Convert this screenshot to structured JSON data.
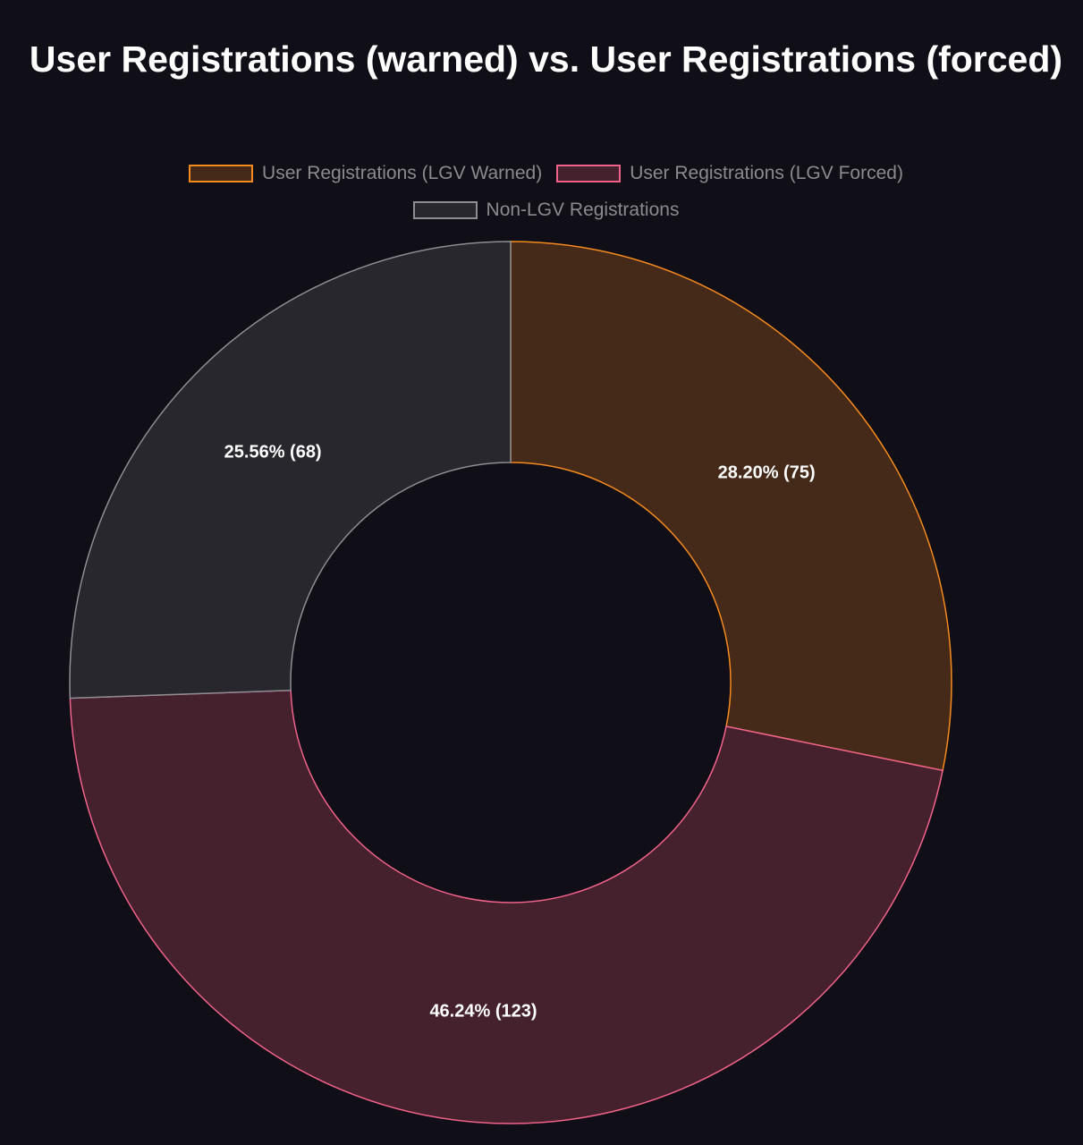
{
  "chart_data": {
    "type": "pie",
    "variant": "doughnut",
    "title": "User Registrations (warned) vs. User Registrations (forced)",
    "legend_position": "top",
    "slices": [
      {
        "name": "User Registrations (LGV Warned)",
        "value": 75,
        "label": "28.20% (75)",
        "stroke": "#f58a1f",
        "fill": "#452a19"
      },
      {
        "name": "User Registrations (LGV Forced)",
        "value": 123,
        "label": "46.24% (123)",
        "stroke": "#f1628a",
        "fill": "#44212d"
      },
      {
        "name": "Non-LGV Registrations",
        "value": 68,
        "label": "25.56% (68)",
        "stroke": "#8d8d92",
        "fill": "#28272d"
      }
    ]
  }
}
